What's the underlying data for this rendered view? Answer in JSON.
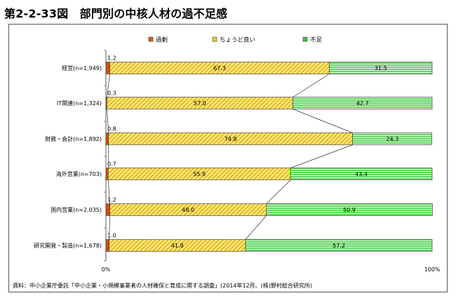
{
  "title": "第2-2-33図　部門別の中核人材の過不足感",
  "source": "資料：中小企業庁委託「中小企業・小規模事業者の人材確保と育成に関する調査」(2014年12月、(株)野村総合研究所)",
  "colors": {
    "excess": "#e05a10",
    "just_right": "#f2d21e",
    "shortage": "#3cc43c"
  },
  "chart_data": {
    "type": "bar",
    "orientation": "horizontal",
    "stacked": true,
    "categories": [
      "経営(n=1,949)",
      "IT関連(n=1,324)",
      "財務・会計(n=1,892)",
      "海外営業(n=703)",
      "国内営業(n=2,035)",
      "研究開発・製造(n=1,678)"
    ],
    "series": [
      {
        "name": "過剰",
        "values": [
          1.2,
          0.3,
          0.8,
          0.7,
          1.2,
          1.0
        ]
      },
      {
        "name": "ちょうど良い",
        "values": [
          67.3,
          57.0,
          74.8,
          55.9,
          48.0,
          41.8
        ]
      },
      {
        "name": "不足",
        "values": [
          31.5,
          42.7,
          24.3,
          43.4,
          50.9,
          57.2
        ]
      }
    ],
    "xlim": [
      0,
      100
    ],
    "xticks": [
      "0%",
      "100%"
    ],
    "legend": "top",
    "grid": false,
    "series_lines": true
  }
}
